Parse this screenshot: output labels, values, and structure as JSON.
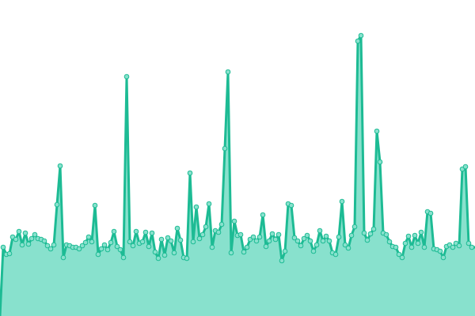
{
  "chart_data": {
    "type": "area",
    "color": "#1dbb94",
    "fill": "#88e1cd",
    "ylim": [
      0,
      400
    ],
    "values": [
      87,
      78,
      79,
      100,
      97,
      107,
      90,
      105,
      91,
      98,
      103,
      98,
      97,
      95,
      89,
      85,
      90,
      141,
      190,
      74,
      90,
      89,
      87,
      87,
      85,
      89,
      93,
      100,
      94,
      140,
      78,
      85,
      90,
      84,
      93,
      107,
      88,
      84,
      74,
      303,
      94,
      89,
      107,
      92,
      94,
      106,
      88,
      105,
      81,
      73,
      97,
      77,
      99,
      95,
      80,
      111,
      96,
      74,
      73,
      181,
      94,
      138,
      98,
      103,
      113,
      142,
      87,
      108,
      106,
      116,
      212,
      309,
      80,
      120,
      102,
      103,
      81,
      87,
      97,
      100,
      95,
      100,
      128,
      88,
      95,
      104,
      97,
      103,
      70,
      82,
      142,
      140,
      99,
      95,
      89,
      98,
      102,
      95,
      82,
      90,
      108,
      95,
      101,
      95,
      80,
      78,
      100,
      145,
      90,
      86,
      102,
      113,
      348,
      355,
      105,
      96,
      104,
      110,
      234,
      195,
      105,
      103,
      94,
      88,
      87,
      78,
      74,
      92,
      101,
      87,
      102,
      92,
      106,
      87,
      132,
      130,
      85,
      84,
      82,
      74,
      88,
      90,
      87,
      92,
      89,
      186,
      189,
      92,
      87
    ]
  }
}
